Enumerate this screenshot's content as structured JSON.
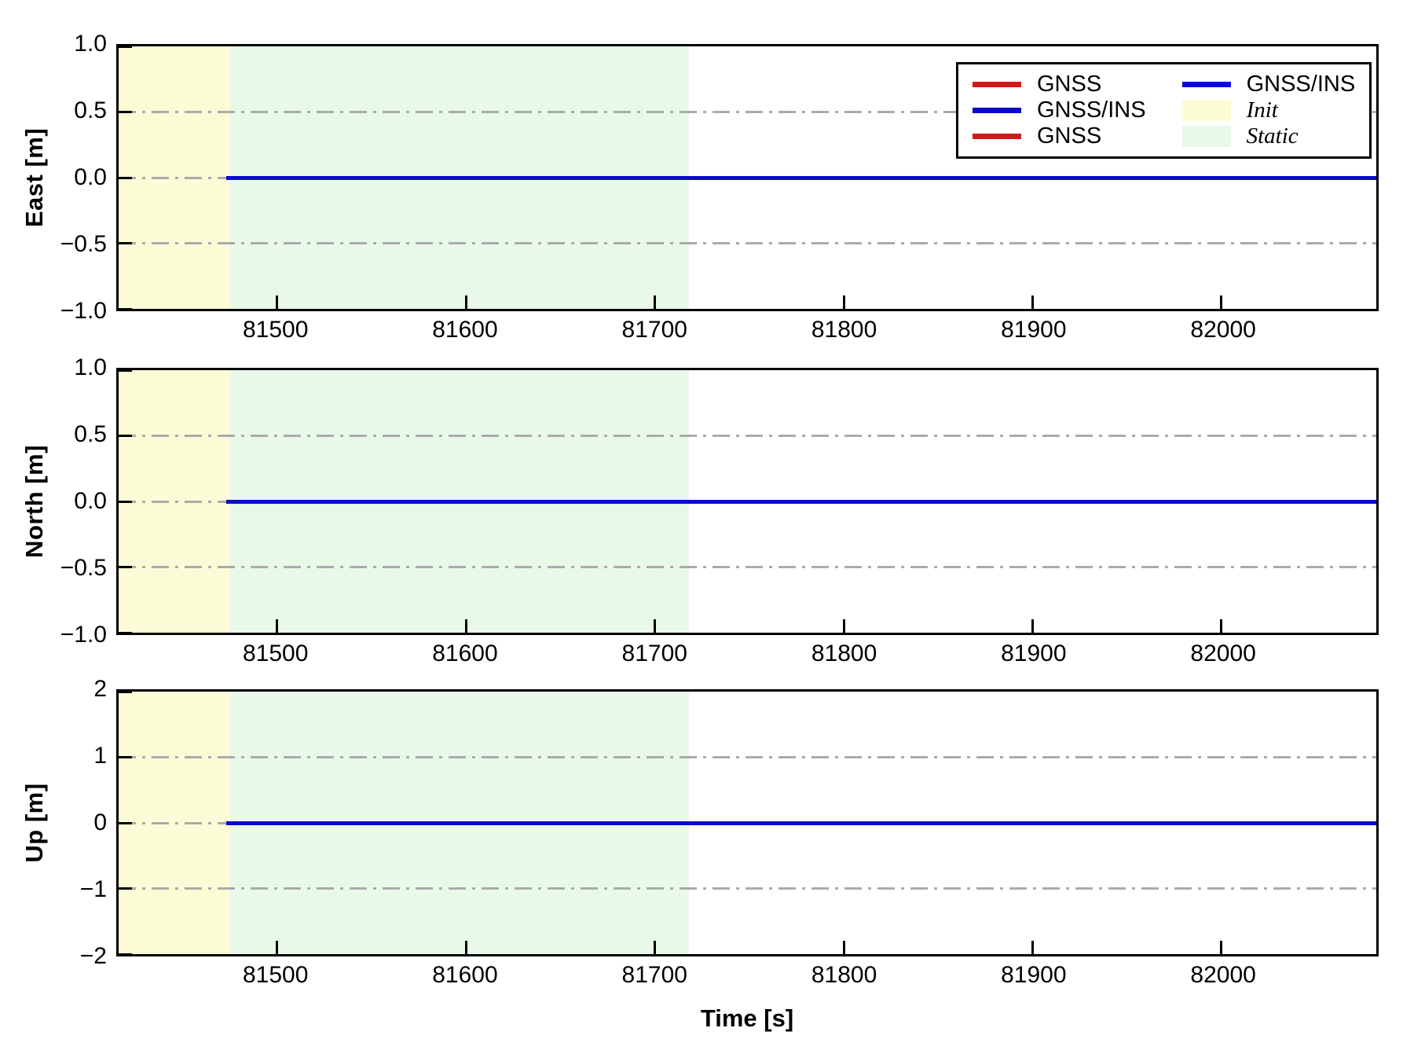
{
  "xlabel": "Time [s]",
  "colors": {
    "gnss_red": "#d21919",
    "gnss_ins_blue": "#0a0ac8",
    "init_yellow": "#fbfbd6",
    "static_green": "#e8f9e9",
    "grid_gray": "#ababab"
  },
  "legend": {
    "position": "upper-right",
    "columns": [
      {
        "items": [
          {
            "label": "GNSS",
            "swatch": "line",
            "color": "#d21919",
            "italic": false
          },
          {
            "label": "GNSS/INS",
            "swatch": "line",
            "color": "#0a0ac8",
            "italic": false
          },
          {
            "label": "GNSS",
            "swatch": "line",
            "color": "#d21919",
            "italic": false
          }
        ]
      },
      {
        "items": [
          {
            "label": "GNSS/INS",
            "swatch": "line",
            "color": "#0a0ac8",
            "italic": false
          },
          {
            "label": "Init",
            "swatch": "patch",
            "color": "#fbfbd6",
            "italic": true
          },
          {
            "label": "Static",
            "swatch": "patch",
            "color": "#e8f9e9",
            "italic": true
          }
        ]
      }
    ]
  },
  "chart_data": [
    {
      "type": "line",
      "ylabel": "East [m]",
      "ylim": [
        -1.0,
        1.0
      ],
      "ytick_values": [
        1.0,
        0.5,
        0.0,
        -0.5,
        -1.0
      ],
      "yticks": [
        "1.0",
        "0.5",
        "0.0",
        "−0.5",
        "−1.0"
      ],
      "xlim": [
        81416,
        82082
      ],
      "xticks": [
        81500,
        81600,
        81700,
        81800,
        81900,
        82000
      ],
      "xtick_labels": [
        "81500",
        "81600",
        "81700",
        "81800",
        "81900",
        "82000"
      ],
      "grid": true,
      "grid_style": "dash-dot",
      "grid_y_values": [
        0.5,
        0.0,
        -0.5
      ],
      "series": [
        {
          "name": "GNSS",
          "color": "#d21919",
          "x_start": 81473,
          "x_end": 82082,
          "constant_value": 0.0
        },
        {
          "name": "GNSS/INS",
          "color": "#0a0ac8",
          "x_start": 81473,
          "x_end": 82082,
          "constant_value": 0.0
        }
      ],
      "regions": [
        {
          "name": "Init",
          "x_start": 81416,
          "x_end": 81475,
          "color": "#fbfbd6"
        },
        {
          "name": "Static",
          "x_start": 81475,
          "x_end": 81718,
          "color": "#e8f9e9"
        }
      ]
    },
    {
      "type": "line",
      "ylabel": "North [m]",
      "ylim": [
        -1.0,
        1.0
      ],
      "ytick_values": [
        1.0,
        0.5,
        0.0,
        -0.5,
        -1.0
      ],
      "yticks": [
        "1.0",
        "0.5",
        "0.0",
        "−0.5",
        "−1.0"
      ],
      "xlim": [
        81416,
        82082
      ],
      "xticks": [
        81500,
        81600,
        81700,
        81800,
        81900,
        82000
      ],
      "xtick_labels": [
        "81500",
        "81600",
        "81700",
        "81800",
        "81900",
        "82000"
      ],
      "grid": true,
      "grid_style": "dash-dot",
      "grid_y_values": [
        0.5,
        0.0,
        -0.5
      ],
      "series": [
        {
          "name": "GNSS",
          "color": "#d21919",
          "x_start": 81473,
          "x_end": 82082,
          "constant_value": 0.0
        },
        {
          "name": "GNSS/INS",
          "color": "#0a0ac8",
          "x_start": 81473,
          "x_end": 82082,
          "constant_value": 0.0
        }
      ],
      "regions": [
        {
          "name": "Init",
          "x_start": 81416,
          "x_end": 81475,
          "color": "#fbfbd6"
        },
        {
          "name": "Static",
          "x_start": 81475,
          "x_end": 81718,
          "color": "#e8f9e9"
        }
      ]
    },
    {
      "type": "line",
      "ylabel": "Up [m]",
      "ylim": [
        -2,
        2
      ],
      "ytick_values": [
        2,
        1,
        0,
        -1,
        -2
      ],
      "yticks": [
        "2",
        "1",
        "0",
        "−1",
        "−2"
      ],
      "xlim": [
        81416,
        82082
      ],
      "xticks": [
        81500,
        81600,
        81700,
        81800,
        81900,
        82000
      ],
      "xtick_labels": [
        "81500",
        "81600",
        "81700",
        "81800",
        "81900",
        "82000"
      ],
      "grid": true,
      "grid_style": "dash-dot",
      "grid_y_values": [
        1,
        0,
        -1
      ],
      "series": [
        {
          "name": "GNSS",
          "color": "#d21919",
          "x_start": 81473,
          "x_end": 82082,
          "constant_value": 0.0
        },
        {
          "name": "GNSS/INS",
          "color": "#0a0ac8",
          "x_start": 81473,
          "x_end": 82082,
          "constant_value": 0.0
        }
      ],
      "regions": [
        {
          "name": "Init",
          "x_start": 81416,
          "x_end": 81475,
          "color": "#fbfbd6"
        },
        {
          "name": "Static",
          "x_start": 81475,
          "x_end": 81718,
          "color": "#e8f9e9"
        }
      ]
    }
  ]
}
